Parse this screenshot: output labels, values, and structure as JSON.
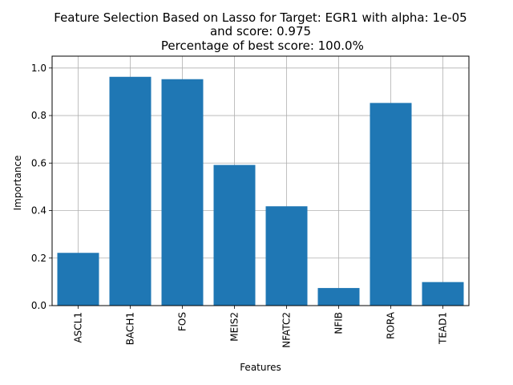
{
  "chart_data": {
    "type": "bar",
    "title_lines": [
      "Feature Selection Based on Lasso for Target: EGR1 with alpha: 1e-05",
      "and score: 0.975",
      " Percentage of best score: 100.0%"
    ],
    "xlabel": "Features",
    "ylabel": "Importance",
    "categories": [
      "ASCL1",
      "BACH1",
      "FOS",
      "MEIS2",
      "NFATC2",
      "NFIB",
      "RORA",
      "TEAD1"
    ],
    "values": [
      0.222,
      0.963,
      0.953,
      0.592,
      0.418,
      0.074,
      0.853,
      0.099
    ],
    "ylim": [
      0,
      1.0
    ],
    "yticks": [
      "0.0",
      "0.2",
      "0.4",
      "0.6",
      "0.8",
      "1.0"
    ],
    "grid": true,
    "bar_color": "#1f77b4",
    "grid_color": "#b0b0b0"
  }
}
